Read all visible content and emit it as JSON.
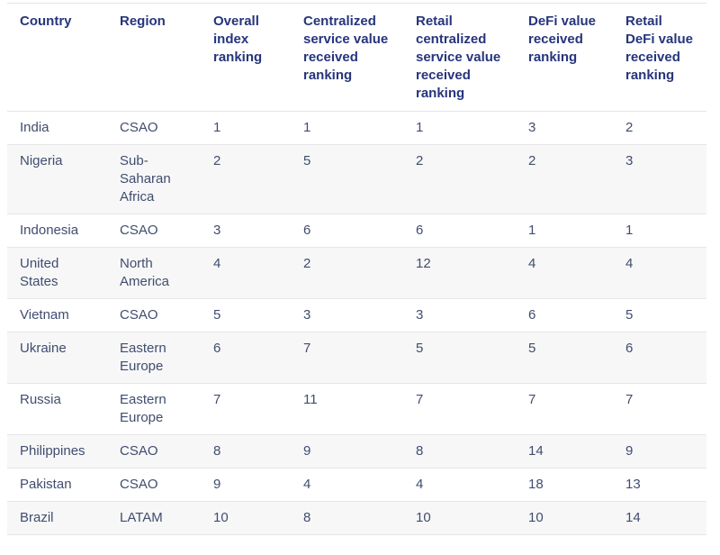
{
  "table": {
    "name": "crypto-adoption-index-rankings",
    "columns": [
      {
        "label": "Country"
      },
      {
        "label": "Region"
      },
      {
        "label": "Overall index ranking"
      },
      {
        "label": "Centralized service value received ranking"
      },
      {
        "label": "Retail centralized service value received ranking"
      },
      {
        "label": "DeFi value received ranking"
      },
      {
        "label": "Retail DeFi value received ranking"
      }
    ],
    "rows": [
      [
        "India",
        "CSAO",
        "1",
        "1",
        "1",
        "3",
        "2"
      ],
      [
        "Nigeria",
        "Sub-Saharan Africa",
        "2",
        "5",
        "2",
        "2",
        "3"
      ],
      [
        "Indonesia",
        "CSAO",
        "3",
        "6",
        "6",
        "1",
        "1"
      ],
      [
        "United States",
        "North America",
        "4",
        "2",
        "12",
        "4",
        "4"
      ],
      [
        "Vietnam",
        "CSAO",
        "5",
        "3",
        "3",
        "6",
        "5"
      ],
      [
        "Ukraine",
        "Eastern Europe",
        "6",
        "7",
        "5",
        "5",
        "6"
      ],
      [
        "Russia",
        "Eastern Europe",
        "7",
        "11",
        "7",
        "7",
        "7"
      ],
      [
        "Philippines",
        "CSAO",
        "8",
        "9",
        "8",
        "14",
        "9"
      ],
      [
        "Pakistan",
        "CSAO",
        "9",
        "4",
        "4",
        "18",
        "13"
      ],
      [
        "Brazil",
        "LATAM",
        "10",
        "8",
        "10",
        "10",
        "14"
      ]
    ]
  },
  "colors": {
    "header_text": "#26357c",
    "body_text": "#414d6e",
    "stripe_bg": "#f7f7f8",
    "divider": "#e5e5e8"
  }
}
